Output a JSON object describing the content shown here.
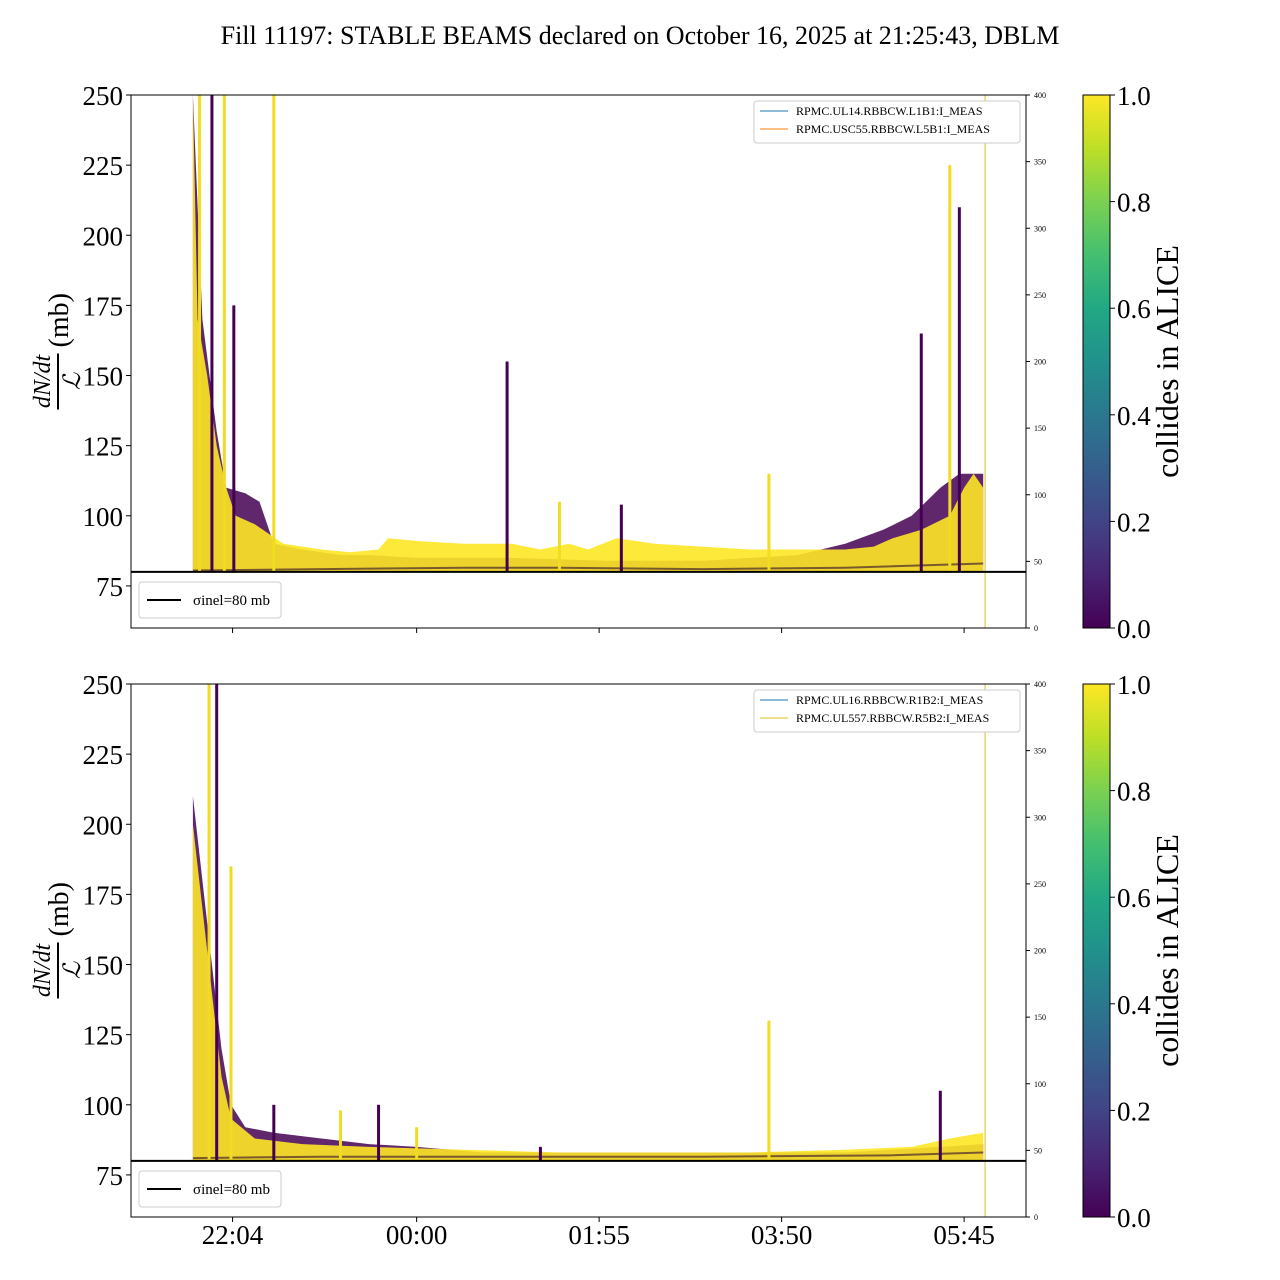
{
  "title": "Fill 11197: STABLE BEAMS declared on October 16, 2025 at 21:25:43, DBLM",
  "colors": {
    "line": "#000000",
    "viridis_low": "#440154",
    "viridis_high": "#fde725",
    "series_blue": "#1f77b4",
    "series_orange": "#ff7f0e",
    "series_yellow": "#d9c21a"
  },
  "chart_data": [
    {
      "type": "line",
      "panel": "top",
      "ylabel_numerator": "dN/dt",
      "ylabel_denominator": "ℒ",
      "ylabel_unit": "(mb)",
      "ylim": [
        60,
        250
      ],
      "yticks": [
        "75",
        "100",
        "125",
        "150",
        "175",
        "200",
        "225",
        "250"
      ],
      "ylim_right": [
        0,
        400
      ],
      "yticks_right": [
        "0",
        "50",
        "100",
        "150",
        "200",
        "250",
        "300",
        "350",
        "400"
      ],
      "xtick_labels": [
        "22:04",
        "00:00",
        "01:55",
        "03:50",
        "05:45"
      ],
      "legend_series": [
        "RPMC.UL14.RBBCW.L1B1:I_MEAS",
        "RPMC.USC55.RBBCW.L5B1:I_MEAS"
      ],
      "legend_sigma": "σinel=80 mb",
      "sigma_inel": 80,
      "colorbar_label": "collides in ALICE",
      "colorbar_ticks": [
        "0.0",
        "0.2",
        "0.4",
        "0.6",
        "0.8",
        "1.0"
      ],
      "envelope_colliding": [
        [
          21.65,
          250
        ],
        [
          21.7,
          170
        ],
        [
          21.8,
          150
        ],
        [
          21.9,
          125
        ],
        [
          22.0,
          110
        ],
        [
          22.1,
          100
        ],
        [
          22.3,
          97
        ],
        [
          22.6,
          90
        ],
        [
          23.0,
          88
        ],
        [
          23.3,
          87
        ],
        [
          23.6,
          88
        ],
        [
          23.7,
          92
        ],
        [
          24.0,
          91
        ],
        [
          24.5,
          90
        ],
        [
          25.0,
          90
        ],
        [
          25.3,
          88
        ],
        [
          25.6,
          90
        ],
        [
          25.8,
          88
        ],
        [
          26.1,
          92
        ],
        [
          26.5,
          90
        ],
        [
          27.0,
          89
        ],
        [
          27.5,
          88
        ],
        [
          28.0,
          88
        ],
        [
          28.5,
          88
        ],
        [
          28.8,
          89
        ],
        [
          29.0,
          92
        ],
        [
          29.3,
          95
        ],
        [
          29.6,
          100
        ],
        [
          29.75,
          110
        ],
        [
          29.85,
          115
        ],
        [
          29.95,
          110
        ]
      ],
      "envelope_non_colliding": [
        [
          21.65,
          250
        ],
        [
          21.75,
          170
        ],
        [
          21.9,
          130
        ],
        [
          22.0,
          110
        ],
        [
          22.2,
          108
        ],
        [
          22.35,
          105
        ],
        [
          22.5,
          90
        ],
        [
          22.8,
          88
        ],
        [
          23.0,
          87
        ],
        [
          23.2,
          86
        ],
        [
          23.5,
          86
        ],
        [
          24.0,
          85
        ],
        [
          25.0,
          85
        ],
        [
          26.0,
          84
        ],
        [
          27.0,
          84
        ],
        [
          28.0,
          86
        ],
        [
          28.5,
          90
        ],
        [
          28.9,
          95
        ],
        [
          29.2,
          100
        ],
        [
          29.5,
          110
        ],
        [
          29.7,
          115
        ],
        [
          29.95,
          115
        ]
      ],
      "baseline": [
        [
          21.65,
          80.5
        ],
        [
          23.0,
          81
        ],
        [
          24.5,
          81.5
        ],
        [
          25.5,
          81.5
        ],
        [
          27.0,
          81
        ],
        [
          28.5,
          81.5
        ],
        [
          29.95,
          83
        ]
      ],
      "spikes": [
        [
          21.72,
          250
        ],
        [
          21.85,
          250
        ],
        [
          21.98,
          250
        ],
        [
          22.08,
          175
        ],
        [
          22.5,
          250
        ],
        [
          24.95,
          155
        ],
        [
          25.5,
          105
        ],
        [
          26.15,
          104
        ],
        [
          27.7,
          115
        ],
        [
          29.3,
          165
        ],
        [
          29.6,
          225
        ],
        [
          29.7,
          210
        ]
      ],
      "vline_x": 29.97
    },
    {
      "type": "line",
      "panel": "bottom",
      "ylabel_numerator": "dN/dt",
      "ylabel_denominator": "ℒ",
      "ylabel_unit": "(mb)",
      "ylim": [
        60,
        250
      ],
      "yticks": [
        "75",
        "100",
        "125",
        "150",
        "175",
        "200",
        "225",
        "250"
      ],
      "ylim_right": [
        0,
        400
      ],
      "yticks_right": [
        "0",
        "50",
        "100",
        "150",
        "200",
        "250",
        "300",
        "350",
        "400"
      ],
      "xtick_labels": [
        "22:04",
        "00:00",
        "01:55",
        "03:50",
        "05:45"
      ],
      "legend_series": [
        "RPMC.UL16.RBBCW.R1B2:I_MEAS",
        "RPMC.UL557.RBBCW.R5B2:I_MEAS"
      ],
      "legend_sigma": "σinel=80 mb",
      "sigma_inel": 80,
      "colorbar_label": "collides in ALICE",
      "colorbar_ticks": [
        "0.0",
        "0.2",
        "0.4",
        "0.6",
        "0.8",
        "1.0"
      ],
      "envelope_colliding": [
        [
          21.65,
          200
        ],
        [
          21.75,
          170
        ],
        [
          21.85,
          140
        ],
        [
          21.95,
          110
        ],
        [
          22.05,
          95
        ],
        [
          22.3,
          88
        ],
        [
          22.8,
          86
        ],
        [
          23.5,
          85
        ],
        [
          24.5,
          84
        ],
        [
          25.5,
          83
        ],
        [
          26.5,
          83
        ],
        [
          27.5,
          83
        ],
        [
          28.5,
          84
        ],
        [
          29.2,
          85
        ],
        [
          29.6,
          88
        ],
        [
          29.95,
          90
        ]
      ],
      "envelope_non_colliding": [
        [
          21.65,
          210
        ],
        [
          21.75,
          180
        ],
        [
          21.85,
          150
        ],
        [
          21.95,
          120
        ],
        [
          22.05,
          100
        ],
        [
          22.2,
          92
        ],
        [
          22.5,
          90
        ],
        [
          23.0,
          88
        ],
        [
          23.5,
          86
        ],
        [
          24.0,
          85
        ],
        [
          24.7,
          83
        ],
        [
          25.5,
          83
        ],
        [
          26.5,
          83
        ],
        [
          27.5,
          83
        ],
        [
          28.5,
          83
        ],
        [
          29.5,
          85
        ],
        [
          29.95,
          86
        ]
      ],
      "baseline": [
        [
          21.65,
          81
        ],
        [
          23.0,
          81.5
        ],
        [
          25.0,
          81.5
        ],
        [
          27.0,
          81.5
        ],
        [
          29.0,
          82
        ],
        [
          29.95,
          83
        ]
      ],
      "spikes": [
        [
          21.82,
          250
        ],
        [
          21.9,
          250
        ],
        [
          22.05,
          185
        ],
        [
          22.5,
          100
        ],
        [
          23.2,
          98
        ],
        [
          23.6,
          100
        ],
        [
          24.0,
          92
        ],
        [
          25.3,
          85
        ],
        [
          27.7,
          130
        ],
        [
          29.5,
          105
        ]
      ],
      "vline_x": 29.97
    }
  ]
}
